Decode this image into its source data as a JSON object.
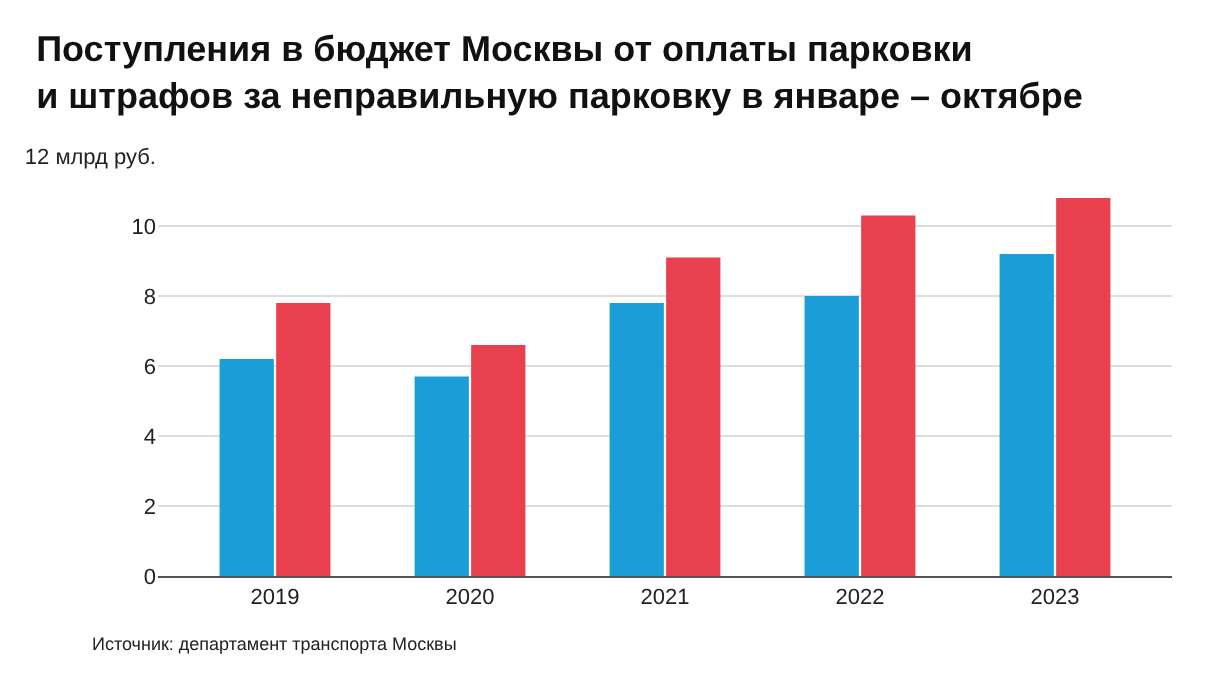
{
  "chart_data": {
    "type": "bar",
    "title": "Поступления в бюджет Москвы от оплаты парковки и штрафов за неправильную парковку в январе – октябре",
    "categories": [
      "2019",
      "2020",
      "2021",
      "2022",
      "2023"
    ],
    "series": [
      {
        "color": "#1b9ed8",
        "values": [
          6.2,
          5.7,
          7.8,
          8.0,
          9.2
        ]
      },
      {
        "color": "#e8404f",
        "values": [
          7.8,
          6.6,
          9.1,
          10.3,
          10.8
        ]
      }
    ],
    "ylim": [
      0,
      12
    ],
    "yticks": [
      0,
      2,
      4,
      6,
      8,
      10,
      {
        "value": 12,
        "label": "12 млрд руб."
      }
    ],
    "grid": "y",
    "annotations": [
      "Источник: департамент транспорта Москвы"
    ]
  }
}
